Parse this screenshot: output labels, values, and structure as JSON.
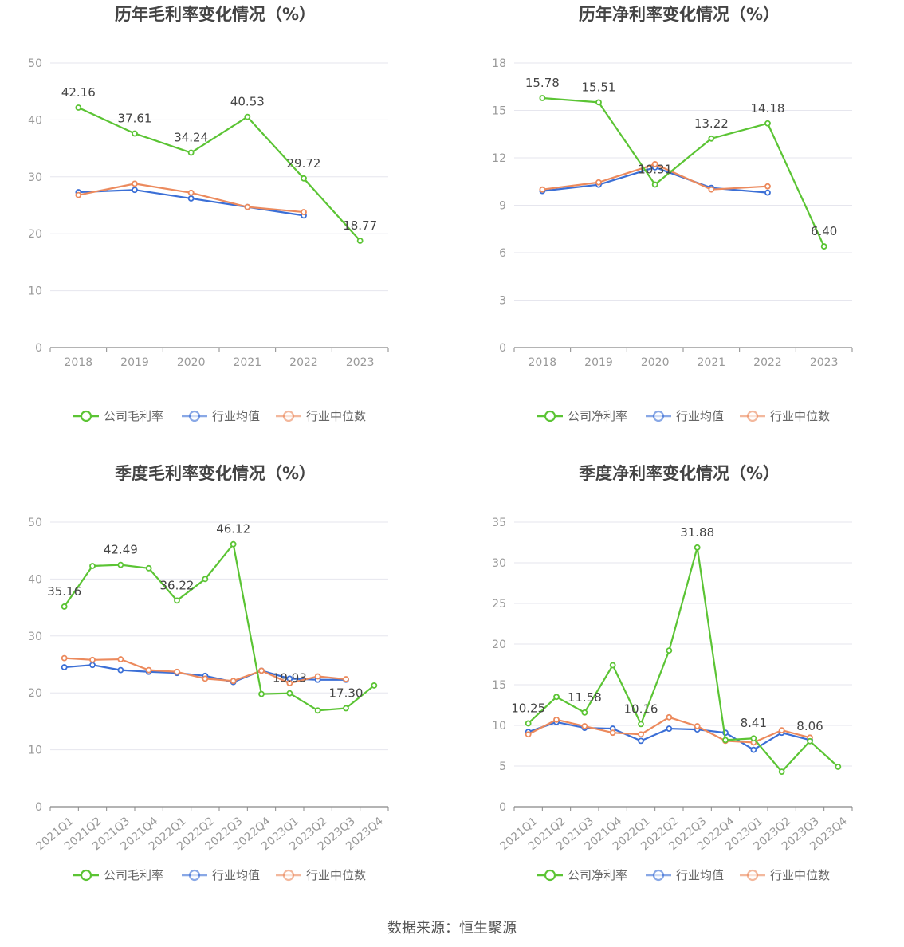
{
  "source_label": "数据来源：恒生聚源",
  "colors": {
    "company": "#5bc434",
    "avg": "#3b6fd6",
    "median": "#ec8a5d",
    "grid": "#e6e6ee",
    "axis": "#888888"
  },
  "legend": {
    "company_gross": "公司毛利率",
    "company_net": "公司净利率",
    "avg": "行业均值",
    "median": "行业中位数"
  },
  "chart_data": [
    {
      "type": "line",
      "title": "历年毛利率变化情况（%）",
      "categories": [
        "2018",
        "2019",
        "2020",
        "2021",
        "2022",
        "2023"
      ],
      "ylim": [
        0,
        50
      ],
      "yticks": [
        0,
        10,
        20,
        30,
        40,
        50
      ],
      "series": [
        {
          "name": "公司毛利率",
          "key": "company",
          "values": [
            42.16,
            37.61,
            34.24,
            40.53,
            29.72,
            18.77
          ]
        },
        {
          "name": "行业均值",
          "key": "avg",
          "values": [
            27.3,
            27.7,
            26.2,
            24.7,
            23.2,
            null
          ]
        },
        {
          "name": "行业中位数",
          "key": "median",
          "values": [
            26.8,
            28.8,
            27.2,
            24.7,
            23.8,
            null
          ]
        }
      ],
      "data_labels": [
        "42.16",
        "37.61",
        "34.24",
        "40.53",
        "29.72",
        "18.77"
      ],
      "label_index": [
        0,
        1,
        2,
        3,
        4,
        5
      ]
    },
    {
      "type": "line",
      "title": "历年净利率变化情况（%）",
      "categories": [
        "2018",
        "2019",
        "2020",
        "2021",
        "2022",
        "2023"
      ],
      "ylim": [
        0,
        18
      ],
      "yticks": [
        0,
        3,
        6,
        9,
        12,
        15,
        18
      ],
      "series": [
        {
          "name": "公司净利率",
          "key": "company",
          "values": [
            15.78,
            15.51,
            10.31,
            13.22,
            14.18,
            6.4
          ]
        },
        {
          "name": "行业均值",
          "key": "avg",
          "values": [
            9.9,
            10.3,
            11.4,
            10.1,
            9.8,
            null
          ]
        },
        {
          "name": "行业中位数",
          "key": "median",
          "values": [
            10.0,
            10.45,
            11.6,
            10.0,
            10.2,
            null
          ]
        }
      ],
      "data_labels": [
        "15.78",
        "15.51",
        "10.31",
        "13.22",
        "14.18",
        "6.40"
      ],
      "label_index": [
        0,
        1,
        2,
        3,
        4,
        5
      ]
    },
    {
      "type": "line",
      "title": "季度毛利率变化情况（%）",
      "categories": [
        "2021Q1",
        "2021Q2",
        "2021Q3",
        "2021Q4",
        "2022Q1",
        "2022Q2",
        "2022Q3",
        "2022Q4",
        "2023Q1",
        "2023Q2",
        "2023Q3",
        "2023Q4"
      ],
      "ylim": [
        0,
        50
      ],
      "yticks": [
        0,
        10,
        20,
        30,
        40,
        50
      ],
      "series": [
        {
          "name": "公司毛利率",
          "key": "company",
          "values": [
            35.16,
            42.3,
            42.49,
            41.9,
            36.22,
            40.0,
            46.12,
            19.8,
            19.93,
            16.9,
            17.3,
            21.3
          ]
        },
        {
          "name": "行业均值",
          "key": "avg",
          "values": [
            24.5,
            24.9,
            24.0,
            23.7,
            23.5,
            23.0,
            21.9,
            23.9,
            22.5,
            22.3,
            22.3,
            null
          ]
        },
        {
          "name": "行业中位数",
          "key": "median",
          "values": [
            26.1,
            25.8,
            25.9,
            24.0,
            23.7,
            22.5,
            22.1,
            23.9,
            21.7,
            22.9,
            22.4,
            null
          ]
        }
      ],
      "data_labels": [
        "35.16",
        "42.49",
        "36.22",
        "46.12",
        "19.93",
        "17.30"
      ],
      "label_index": [
        0,
        2,
        4,
        6,
        8,
        10
      ]
    },
    {
      "type": "line",
      "title": "季度净利率变化情况（%）",
      "categories": [
        "2021Q1",
        "2021Q2",
        "2021Q3",
        "2021Q4",
        "2022Q1",
        "2022Q2",
        "2022Q3",
        "2022Q4",
        "2023Q1",
        "2023Q2",
        "2023Q3",
        "2023Q4"
      ],
      "ylim": [
        0,
        35
      ],
      "yticks": [
        0,
        5,
        10,
        15,
        20,
        25,
        30,
        35
      ],
      "series": [
        {
          "name": "公司净利率",
          "key": "company",
          "values": [
            10.25,
            13.5,
            11.58,
            17.4,
            10.16,
            19.2,
            31.88,
            8.2,
            8.41,
            4.3,
            8.06,
            4.9
          ]
        },
        {
          "name": "行业均值",
          "key": "avg",
          "values": [
            9.2,
            10.4,
            9.7,
            9.6,
            8.1,
            9.6,
            9.5,
            9.1,
            7.0,
            9.1,
            8.2,
            null
          ]
        },
        {
          "name": "行业中位数",
          "key": "median",
          "values": [
            8.9,
            10.7,
            9.9,
            9.1,
            8.9,
            11.0,
            9.9,
            8.1,
            7.9,
            9.4,
            8.5,
            null
          ]
        }
      ],
      "data_labels": [
        "10.25",
        "11.58",
        "10.16",
        "31.88",
        "8.41",
        "8.06"
      ],
      "label_index": [
        0,
        2,
        4,
        6,
        8,
        10
      ]
    }
  ]
}
